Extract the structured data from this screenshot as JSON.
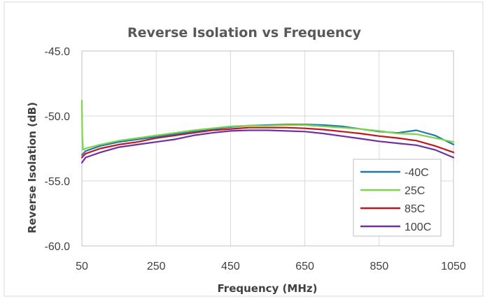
{
  "chart_data": {
    "type": "line",
    "title": "Reverse Isolation vs Frequency",
    "xlabel": "Frequency (MHz)",
    "ylabel": "Reverse Isolation (dB)",
    "xlim": [
      50,
      1050
    ],
    "ylim": [
      -60,
      -45
    ],
    "xticks": [
      "50",
      "250",
      "450",
      "650",
      "850",
      "1050"
    ],
    "yticks": [
      "-45.0",
      "-50.0",
      "-55.0",
      "-60.0"
    ],
    "grid": true,
    "legend_position": "bottom-right",
    "series": [
      {
        "name": "-40C",
        "color": "#1F77B4",
        "x": [
          50,
          60,
          100,
          150,
          200,
          250,
          300,
          350,
          400,
          450,
          500,
          550,
          600,
          650,
          700,
          750,
          800,
          850,
          900,
          950,
          1000,
          1050
        ],
        "y": [
          -53.0,
          -52.7,
          -52.3,
          -52.0,
          -51.8,
          -51.6,
          -51.4,
          -51.2,
          -51.0,
          -50.85,
          -50.75,
          -50.7,
          -50.65,
          -50.65,
          -50.7,
          -50.8,
          -51.0,
          -51.2,
          -51.3,
          -51.1,
          -51.5,
          -52.2
        ]
      },
      {
        "name": "25C",
        "color": "#7FD44C",
        "x": [
          50,
          51,
          53,
          60,
          100,
          150,
          200,
          250,
          300,
          350,
          400,
          450,
          500,
          550,
          600,
          650,
          700,
          750,
          800,
          850,
          900,
          950,
          1000,
          1050
        ],
        "y": [
          -48.8,
          -51.5,
          -52.6,
          -52.5,
          -52.2,
          -51.9,
          -51.7,
          -51.5,
          -51.3,
          -51.1,
          -50.95,
          -50.8,
          -50.75,
          -50.75,
          -50.7,
          -50.7,
          -50.8,
          -50.9,
          -51.0,
          -51.15,
          -51.35,
          -51.4,
          -51.7,
          -52.0
        ]
      },
      {
        "name": "85C",
        "color": "#C0161C",
        "x": [
          50,
          60,
          100,
          150,
          200,
          250,
          300,
          350,
          400,
          450,
          500,
          550,
          600,
          650,
          700,
          750,
          800,
          850,
          900,
          950,
          1000,
          1050
        ],
        "y": [
          -53.2,
          -52.9,
          -52.5,
          -52.2,
          -52.0,
          -51.7,
          -51.5,
          -51.3,
          -51.1,
          -51.0,
          -50.9,
          -50.9,
          -50.9,
          -50.95,
          -51.05,
          -51.2,
          -51.35,
          -51.55,
          -51.7,
          -51.9,
          -52.3,
          -52.8
        ]
      },
      {
        "name": "100C",
        "color": "#7030A0",
        "x": [
          50,
          60,
          100,
          150,
          200,
          250,
          300,
          350,
          400,
          450,
          500,
          550,
          600,
          650,
          700,
          750,
          800,
          850,
          900,
          950,
          1000,
          1050
        ],
        "y": [
          -53.6,
          -53.2,
          -52.8,
          -52.4,
          -52.2,
          -52.0,
          -51.8,
          -51.5,
          -51.3,
          -51.15,
          -51.1,
          -51.1,
          -51.15,
          -51.2,
          -51.35,
          -51.55,
          -51.75,
          -51.95,
          -52.1,
          -52.25,
          -52.6,
          -53.2
        ]
      }
    ]
  }
}
